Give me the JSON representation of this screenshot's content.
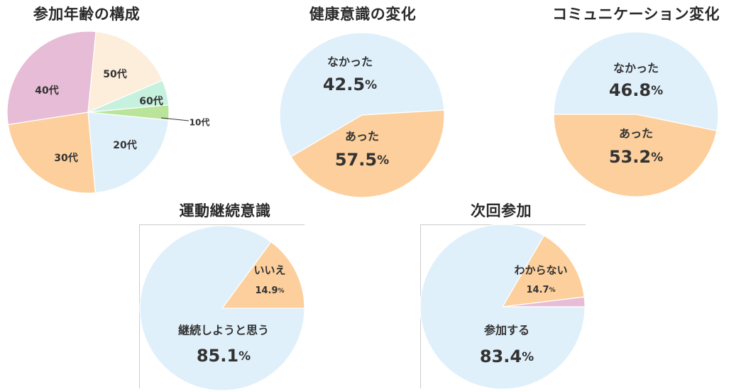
{
  "colors": {
    "pink": "#e7bcd6",
    "cream": "#fdeedb",
    "mint": "#c6f1df",
    "green": "#b9e49a",
    "lightblue": "#dff0fb",
    "peach": "#fccf9c"
  },
  "chart_data": [
    {
      "id": "age",
      "type": "pie",
      "title": "参加年齢の構成",
      "slices": [
        {
          "label": "10代",
          "value": 3,
          "color": "#b9e49a"
        },
        {
          "label": "20代",
          "value": 22,
          "color": "#dff0fb"
        },
        {
          "label": "30代",
          "value": 24,
          "color": "#fccf9c"
        },
        {
          "label": "40代",
          "value": 29,
          "color": "#e7bcd6"
        },
        {
          "label": "50代",
          "value": 17,
          "color": "#fdeedb"
        },
        {
          "label": "60代",
          "value": 5,
          "color": "#c6f1df"
        }
      ]
    },
    {
      "id": "health",
      "type": "pie",
      "title": "健康意識の変化",
      "slices": [
        {
          "label": "あった",
          "value": 57.5,
          "value_text": "57.5",
          "unit": "%",
          "color": "#dff0fb"
        },
        {
          "label": "なかった",
          "value": 42.5,
          "value_text": "42.5",
          "unit": "%",
          "color": "#fccf9c"
        }
      ]
    },
    {
      "id": "comm",
      "type": "pie",
      "title": "コミュニケーション変化",
      "slices": [
        {
          "label": "あった",
          "value": 53.2,
          "value_text": "53.2",
          "unit": "%",
          "color": "#dff0fb"
        },
        {
          "label": "なかった",
          "value": 46.8,
          "value_text": "46.8",
          "unit": "%",
          "color": "#fccf9c"
        }
      ]
    },
    {
      "id": "exercise",
      "type": "pie",
      "title": "運動継続意識",
      "slices": [
        {
          "label": "いいえ",
          "value": 14.9,
          "value_text": "14.9",
          "unit": "%",
          "color": "#fccf9c"
        },
        {
          "label": "継続しようと思う",
          "value": 85.1,
          "value_text": "85.1",
          "unit": "%",
          "color": "#dff0fb"
        }
      ]
    },
    {
      "id": "next",
      "type": "pie",
      "title": "次回参加",
      "slices": [
        {
          "label": "わからない",
          "value": 14.7,
          "value_text": "14.7",
          "unit": "%",
          "color": "#fccf9c"
        },
        {
          "label": "",
          "value": 1.9,
          "color": "#e7bcd6"
        },
        {
          "label": "参加する",
          "value": 83.4,
          "value_text": "83.4",
          "unit": "%",
          "color": "#dff0fb"
        }
      ]
    }
  ]
}
